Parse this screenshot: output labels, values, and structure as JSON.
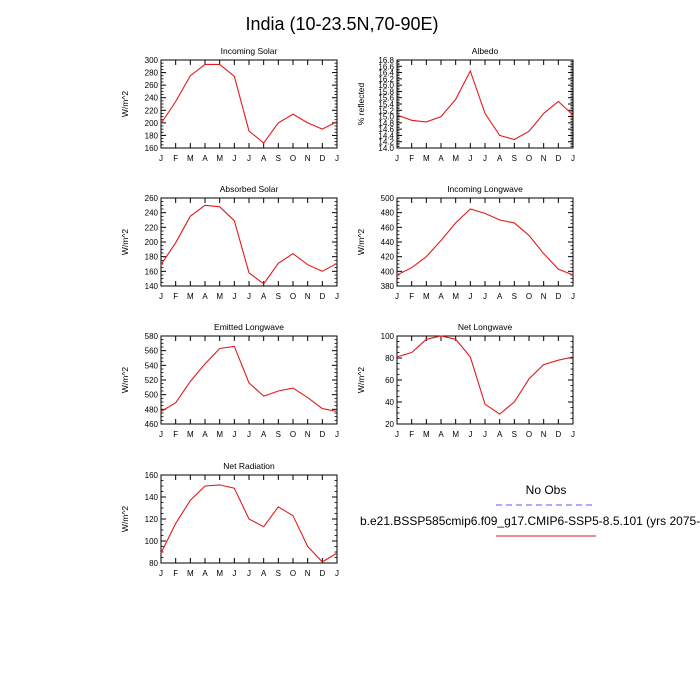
{
  "figure": {
    "title": "India (10-23.5N,70-90E)",
    "legend": {
      "obs_label": "No Obs",
      "obs_color": "#5a5aff",
      "model_label": "b.e21.BSSP585cmip6.f09_g17.CMIP6-SSP5-8.5.101 (yrs 2075-",
      "model_color": "#e31a1c"
    }
  },
  "chart_data": [
    {
      "type": "line",
      "title": "Incoming Solar",
      "ylabel": "W/m^2",
      "x": [
        "J",
        "F",
        "M",
        "A",
        "M",
        "J",
        "J",
        "A",
        "S",
        "O",
        "N",
        "D",
        "J"
      ],
      "ylim": [
        160,
        300
      ],
      "yticks": [
        "160",
        "180",
        "200",
        "220",
        "240",
        "260",
        "280",
        "300"
      ],
      "series": [
        {
          "values": [
            199,
            234,
            275,
            293,
            293,
            274,
            187,
            168,
            200,
            214,
            200,
            190,
            202
          ],
          "color": "#e31a1c"
        }
      ]
    },
    {
      "type": "line",
      "title": "Albedo",
      "ylabel": "% reflected",
      "x": [
        "J",
        "F",
        "M",
        "A",
        "M",
        "J",
        "J",
        "A",
        "S",
        "O",
        "N",
        "D",
        "J"
      ],
      "ylim": [
        14.0,
        16.8
      ],
      "yticks": [
        "14.0",
        "14.2",
        "14.4",
        "14.6",
        "14.8",
        "15.0",
        "15.2",
        "15.4",
        "15.6",
        "15.8",
        "16.0",
        "16.2",
        "16.4",
        "16.6",
        "16.8"
      ],
      "series": [
        {
          "values": [
            15.05,
            14.88,
            14.83,
            15.0,
            15.55,
            16.45,
            15.1,
            14.4,
            14.27,
            14.53,
            15.1,
            15.48,
            15.05
          ],
          "color": "#e31a1c"
        }
      ]
    },
    {
      "type": "line",
      "title": "Absorbed Solar",
      "ylabel": "W/m^2",
      "x": [
        "J",
        "F",
        "M",
        "A",
        "M",
        "J",
        "J",
        "A",
        "S",
        "O",
        "N",
        "D",
        "J"
      ],
      "ylim": [
        140,
        260
      ],
      "yticks": [
        "140",
        "160",
        "180",
        "200",
        "220",
        "240",
        "260"
      ],
      "series": [
        {
          "values": [
            169,
            199,
            235,
            250,
            248,
            229,
            158,
            143,
            171,
            184,
            169,
            160,
            171
          ],
          "color": "#e31a1c"
        }
      ]
    },
    {
      "type": "line",
      "title": "Incoming Longwave",
      "ylabel": "W/m^2",
      "x": [
        "J",
        "F",
        "M",
        "A",
        "M",
        "J",
        "J",
        "A",
        "S",
        "O",
        "N",
        "D",
        "J"
      ],
      "ylim": [
        380,
        500
      ],
      "yticks": [
        "380",
        "400",
        "420",
        "440",
        "460",
        "480",
        "500"
      ],
      "series": [
        {
          "values": [
            395,
            405,
            420,
            442,
            466,
            485,
            479,
            470,
            466,
            449,
            424,
            403,
            395
          ],
          "color": "#e31a1c"
        }
      ]
    },
    {
      "type": "line",
      "title": "Emitted Longwave",
      "ylabel": "W/m^2",
      "x": [
        "J",
        "F",
        "M",
        "A",
        "M",
        "J",
        "J",
        "A",
        "S",
        "O",
        "N",
        "D",
        "J"
      ],
      "ylim": [
        460,
        580
      ],
      "yticks": [
        "460",
        "480",
        "500",
        "520",
        "540",
        "560",
        "580"
      ],
      "series": [
        {
          "values": [
            477,
            489,
            518,
            542,
            563,
            566,
            516,
            498,
            505,
            509,
            496,
            481,
            477
          ],
          "color": "#e31a1c"
        }
      ]
    },
    {
      "type": "line",
      "title": "Net Longwave",
      "ylabel": "W/m^2",
      "x": [
        "J",
        "F",
        "M",
        "A",
        "M",
        "J",
        "J",
        "A",
        "S",
        "O",
        "N",
        "D",
        "J"
      ],
      "ylim": [
        20,
        100
      ],
      "yticks": [
        "20",
        "40",
        "60",
        "80",
        "100"
      ],
      "series": [
        {
          "values": [
            81,
            85,
            97,
            100,
            97,
            81,
            38,
            29,
            40,
            61,
            74,
            78,
            81
          ],
          "color": "#e31a1c"
        }
      ]
    },
    {
      "type": "line",
      "title": "Net Radiation",
      "ylabel": "W/m^2",
      "x": [
        "J",
        "F",
        "M",
        "A",
        "M",
        "J",
        "J",
        "A",
        "S",
        "O",
        "N",
        "D",
        "J"
      ],
      "ylim": [
        80,
        160
      ],
      "yticks": [
        "80",
        "100",
        "120",
        "140",
        "160"
      ],
      "series": [
        {
          "values": [
            89,
            116,
            137,
            150,
            151,
            148,
            120,
            113,
            131,
            123,
            95,
            81,
            89
          ],
          "color": "#e31a1c"
        }
      ]
    }
  ]
}
